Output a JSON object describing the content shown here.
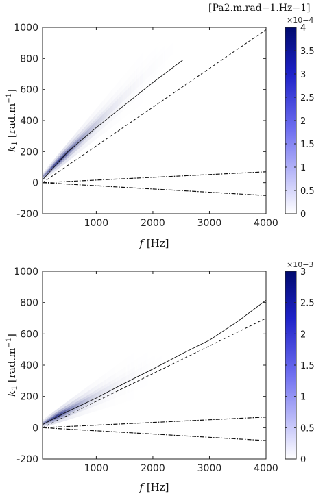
{
  "chart_data": [
    {
      "type": "heatmap",
      "xlabel": "f [Hz]",
      "ylabel": "k1 [rad.m−1]",
      "colorbar_unit": "[Pa2.m.rad−1.Hz−1]",
      "colorbar_exponent": "×10−4",
      "xlim": [
        50,
        4000
      ],
      "ylim": [
        -200,
        1000
      ],
      "x_ticks": [
        1000,
        2000,
        3000,
        4000
      ],
      "y_ticks": [
        -200,
        0,
        200,
        400,
        600,
        800,
        1000
      ],
      "colorbar_lim": [
        0,
        4
      ],
      "colorbar_ticks": [
        0,
        0.5,
        1,
        1.5,
        2,
        2.5,
        3,
        3.5,
        4
      ],
      "colormap": [
        "#ffffff",
        "#000a6e"
      ],
      "convective_ridge": {
        "slope": 0.36,
        "intercept": 18,
        "peak_f": 350,
        "decay_hz": 700,
        "fade_to_f": 2800
      },
      "series": [
        {
          "style": "solid",
          "x": [
            50,
            500,
            1000,
            1500,
            2000,
            2530
          ],
          "y": [
            18,
            200,
            355,
            500,
            645,
            790
          ]
        },
        {
          "style": "dashed",
          "x": [
            50,
            4000
          ],
          "y": [
            0,
            985
          ]
        },
        {
          "style": "dash-dot",
          "x": [
            50,
            4000
          ],
          "y": [
            0,
            70
          ]
        },
        {
          "style": "dash-dot",
          "x": [
            50,
            4000
          ],
          "y": [
            0,
            -82
          ]
        }
      ]
    },
    {
      "type": "heatmap",
      "xlabel": "f [Hz]",
      "ylabel": "k1 [rad.m−1]",
      "colorbar_unit": "",
      "colorbar_exponent": "×10−3",
      "xlim": [
        50,
        4000
      ],
      "ylim": [
        -200,
        1000
      ],
      "x_ticks": [
        1000,
        2000,
        3000,
        4000
      ],
      "y_ticks": [
        -200,
        0,
        200,
        400,
        600,
        800,
        1000
      ],
      "colorbar_lim": [
        0,
        3
      ],
      "colorbar_ticks": [
        0,
        0.5,
        1,
        1.5,
        2,
        2.5,
        3
      ],
      "colormap": [
        "#ffffff",
        "#000a6e"
      ],
      "convective_ridge": {
        "slope": 0.19,
        "intercept": 15,
        "peak_f": 300,
        "decay_hz": 650,
        "fade_to_f": 2400
      },
      "series": [
        {
          "style": "solid",
          "x": [
            50,
            500,
            1000,
            1500,
            2000,
            2500,
            3000,
            3500,
            4000
          ],
          "y": [
            20,
            105,
            190,
            285,
            375,
            470,
            560,
            680,
            815
          ]
        },
        {
          "style": "dashed",
          "x": [
            50,
            4000
          ],
          "y": [
            0,
            700
          ]
        },
        {
          "style": "dash-dot",
          "x": [
            50,
            4000
          ],
          "y": [
            0,
            68
          ]
        },
        {
          "style": "dash-dot",
          "x": [
            50,
            4000
          ],
          "y": [
            0,
            -82
          ]
        }
      ]
    }
  ]
}
